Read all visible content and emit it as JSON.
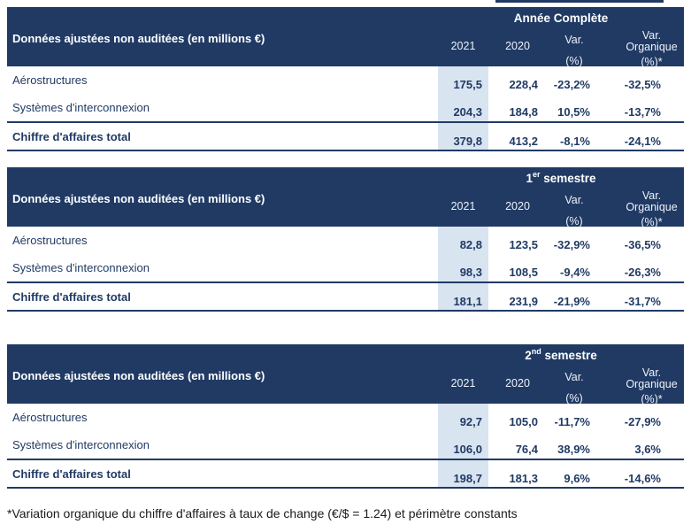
{
  "colors": {
    "navy": "#203a64",
    "highlight_2021_column": "#d9e4f1",
    "header_text": "#ffffff",
    "body_text": "#203a64",
    "footnote_text": "#1a1a1a"
  },
  "shared": {
    "row_header_label": "Données ajustées non auditées (en millions €)",
    "columns": {
      "y2021": "2021",
      "y2020": "2020",
      "var_line1": "Var.",
      "var_line2": "(%)",
      "varorg_line1": "Var.",
      "varorg_line2": "Organique",
      "varorg_line3": "(%)*"
    }
  },
  "tables": [
    {
      "period": {
        "prefix": "Année Complète",
        "sup": "",
        "suffix": ""
      },
      "rows": [
        {
          "label": "Aérostructures",
          "v2021": "175,5",
          "v2020": "228,4",
          "var": "-23,2%",
          "varorg": "-32,5%"
        },
        {
          "label": "Systèmes d'interconnexion",
          "v2021": "204,3",
          "v2020": "184,8",
          "var": "10,5%",
          "varorg": "-13,7%"
        },
        {
          "label": "Chiffre d'affaires total",
          "v2021": "379,8",
          "v2020": "413,2",
          "var": "-8,1%",
          "varorg": "-24,1%"
        }
      ]
    },
    {
      "period": {
        "prefix": "1",
        "sup": "er",
        "suffix": " semestre"
      },
      "rows": [
        {
          "label": "Aérostructures",
          "v2021": "82,8",
          "v2020": "123,5",
          "var": "-32,9%",
          "varorg": "-36,5%"
        },
        {
          "label": "Systèmes d'interconnexion",
          "v2021": "98,3",
          "v2020": "108,5",
          "var": "-9,4%",
          "varorg": "-26,3%"
        },
        {
          "label": "Chiffre d'affaires total",
          "v2021": "181,1",
          "v2020": "231,9",
          "var": "-21,9%",
          "varorg": "-31,7%"
        }
      ]
    },
    {
      "period": {
        "prefix": "2",
        "sup": "nd",
        "suffix": " semestre"
      },
      "rows": [
        {
          "label": "Aérostructures",
          "v2021": "92,7",
          "v2020": "105,0",
          "var": "-11,7%",
          "varorg": "-27,9%"
        },
        {
          "label": "Systèmes d'interconnexion",
          "v2021": "106,0",
          "v2020": "76,4",
          "var": "38,9%",
          "varorg": "3,6%"
        },
        {
          "label": "Chiffre d'affaires total",
          "v2021": "198,7",
          "v2020": "181,3",
          "var": "9,6%",
          "varorg": "-14,6%"
        }
      ]
    }
  ],
  "footnote": "*Variation organique du chiffre d'affaires à taux de change (€/$ = 1.24) et périmètre constants"
}
